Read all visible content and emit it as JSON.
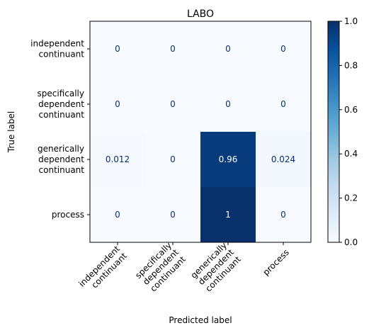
{
  "chart_data": {
    "type": "heatmap",
    "title": "LABO",
    "xlabel": "Predicted label",
    "ylabel": "True label",
    "x_categories": [
      [
        "independent",
        "continuant"
      ],
      [
        "specifically",
        "dependent",
        "continuant"
      ],
      [
        "generically",
        "dependent",
        "continuant"
      ],
      [
        "process"
      ]
    ],
    "y_categories": [
      [
        "independent",
        "continuant"
      ],
      [
        "specifically",
        "dependent",
        "continuant"
      ],
      [
        "generically",
        "dependent",
        "continuant"
      ],
      [
        "process"
      ]
    ],
    "matrix": [
      [
        0,
        0,
        0,
        0
      ],
      [
        0,
        0,
        0,
        0
      ],
      [
        0.012,
        0,
        0.96,
        0.024
      ],
      [
        0,
        0,
        1,
        0
      ]
    ],
    "cell_labels": [
      [
        "0",
        "0",
        "0",
        "0"
      ],
      [
        "0",
        "0",
        "0",
        "0"
      ],
      [
        "0.012",
        "0",
        "0.96",
        "0.024"
      ],
      [
        "0",
        "0",
        "1",
        "0"
      ]
    ],
    "colorbar": {
      "colormap": "Blues",
      "range": [
        0,
        1
      ],
      "ticks": [
        0.0,
        0.2,
        0.4,
        0.6,
        0.8,
        1.0
      ],
      "tick_labels": [
        "0.0",
        "0.2",
        "0.4",
        "0.6",
        "0.8",
        "1.0"
      ]
    },
    "grid": false
  }
}
